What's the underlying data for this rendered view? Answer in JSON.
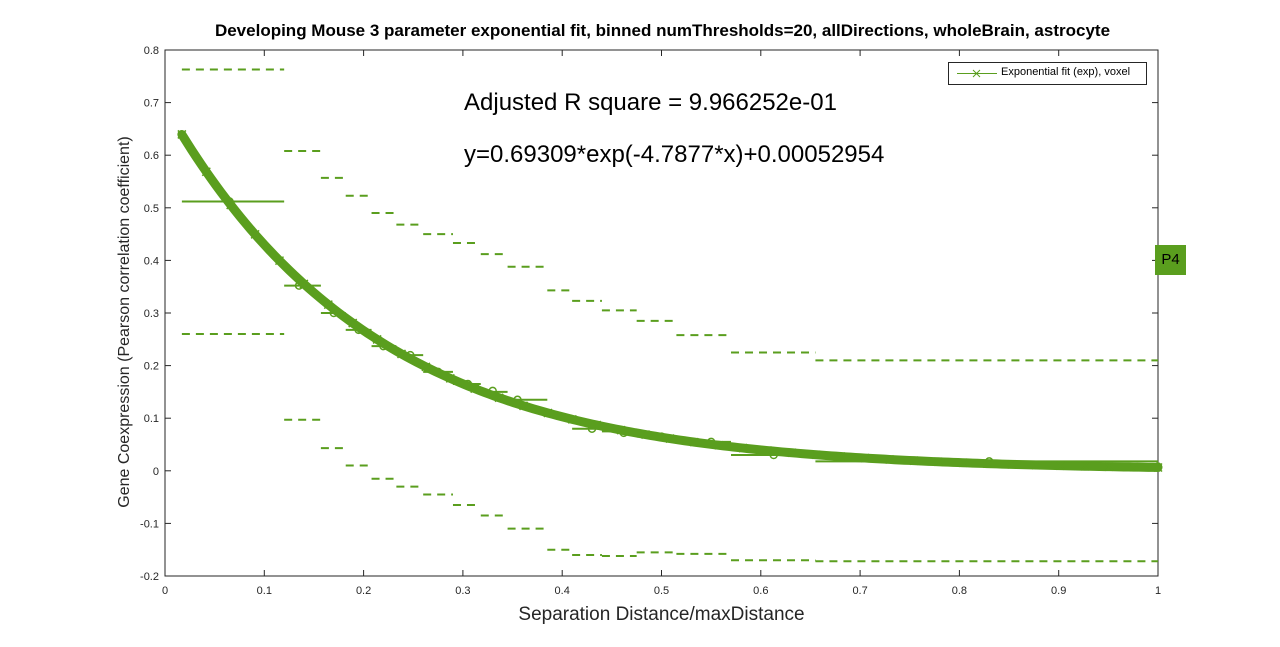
{
  "chart_data": {
    "type": "line",
    "title": "Developing Mouse 3 parameter exponential fit, binned numThresholds=20, allDirections, wholeBrain, astrocyte",
    "xlabel": "Separation Distance/maxDistance",
    "ylabel": "Gene Coexpression (Pearson correlation coefficient)",
    "xlim": [
      0,
      1
    ],
    "ylim": [
      -0.2,
      0.8
    ],
    "xticks": [
      0,
      0.1,
      0.2,
      0.3,
      0.4,
      0.5,
      0.6,
      0.7,
      0.8,
      0.9,
      1
    ],
    "xtick_labels": [
      "0",
      "0.1",
      "0.2",
      "0.3",
      "0.4",
      "0.5",
      "0.6",
      "0.7",
      "0.8",
      "0.9",
      "1"
    ],
    "yticks": [
      -0.2,
      -0.1,
      0,
      0.1,
      0.2,
      0.3,
      0.4,
      0.5,
      0.6,
      0.7,
      0.8
    ],
    "ytick_labels": [
      "-0.2",
      "-0.1",
      "0",
      "0.1",
      "0.2",
      "0.3",
      "0.4",
      "0.5",
      "0.6",
      "0.7",
      "0.8"
    ],
    "grid": false,
    "legend_position": "top-right",
    "color": "#5a9e1e",
    "fit": {
      "name": "Exponential fit (exp), voxel",
      "a": 0.69309,
      "b": -4.7877,
      "c": 0.00052954,
      "x_range": [
        0.017,
        1.0
      ]
    },
    "bins": [
      {
        "x0": 0.017,
        "x1": 0.12,
        "mean": 0.512,
        "upper": 0.763,
        "lower": 0.26
      },
      {
        "x0": 0.12,
        "x1": 0.157,
        "mean": 0.352,
        "upper": 0.608,
        "lower": 0.097
      },
      {
        "x0": 0.157,
        "x1": 0.182,
        "mean": 0.3,
        "upper": 0.557,
        "lower": 0.043
      },
      {
        "x0": 0.182,
        "x1": 0.208,
        "mean": 0.268,
        "upper": 0.523,
        "lower": 0.01
      },
      {
        "x0": 0.208,
        "x1": 0.233,
        "mean": 0.237,
        "upper": 0.49,
        "lower": -0.015
      },
      {
        "x0": 0.233,
        "x1": 0.26,
        "mean": 0.22,
        "upper": 0.468,
        "lower": -0.03
      },
      {
        "x0": 0.26,
        "x1": 0.29,
        "mean": 0.188,
        "upper": 0.45,
        "lower": -0.045
      },
      {
        "x0": 0.29,
        "x1": 0.318,
        "mean": 0.165,
        "upper": 0.433,
        "lower": -0.065
      },
      {
        "x0": 0.318,
        "x1": 0.345,
        "mean": 0.15,
        "upper": 0.412,
        "lower": -0.085
      },
      {
        "x0": 0.345,
        "x1": 0.385,
        "mean": 0.135,
        "upper": 0.388,
        "lower": -0.11
      },
      {
        "x0": 0.385,
        "x1": 0.41,
        "mean": 0.105,
        "upper": 0.343,
        "lower": -0.15
      },
      {
        "x0": 0.41,
        "x1": 0.44,
        "mean": 0.08,
        "upper": 0.323,
        "lower": -0.16
      },
      {
        "x0": 0.44,
        "x1": 0.475,
        "mean": 0.075,
        "upper": 0.305,
        "lower": -0.162
      },
      {
        "x0": 0.475,
        "x1": 0.515,
        "mean": 0.065,
        "upper": 0.285,
        "lower": -0.155
      },
      {
        "x0": 0.515,
        "x1": 0.57,
        "mean": 0.055,
        "upper": 0.258,
        "lower": -0.158
      },
      {
        "x0": 0.57,
        "x1": 0.655,
        "mean": 0.03,
        "upper": 0.225,
        "lower": -0.17
      },
      {
        "x0": 0.655,
        "x1": 1.0,
        "mean": 0.018,
        "upper": 0.21,
        "lower": -0.172
      }
    ],
    "points": [
      {
        "x": 0.065,
        "y": 0.512
      },
      {
        "x": 0.135,
        "y": 0.352
      },
      {
        "x": 0.17,
        "y": 0.3
      },
      {
        "x": 0.195,
        "y": 0.268
      },
      {
        "x": 0.22,
        "y": 0.237
      },
      {
        "x": 0.247,
        "y": 0.22
      },
      {
        "x": 0.275,
        "y": 0.188
      },
      {
        "x": 0.305,
        "y": 0.165
      },
      {
        "x": 0.33,
        "y": 0.152
      },
      {
        "x": 0.355,
        "y": 0.135
      },
      {
        "x": 0.395,
        "y": 0.105
      },
      {
        "x": 0.43,
        "y": 0.08
      },
      {
        "x": 0.462,
        "y": 0.072
      },
      {
        "x": 0.5,
        "y": 0.065
      },
      {
        "x": 0.55,
        "y": 0.055
      },
      {
        "x": 0.613,
        "y": 0.03
      },
      {
        "x": 0.83,
        "y": 0.018
      },
      {
        "x": 1.0,
        "y": 0.008
      }
    ]
  },
  "annotations": {
    "r_square": "Adjusted R square = 9.966252e-01",
    "equation": "y=0.69309*exp(-4.7877*x)+0.00052954"
  },
  "legend": {
    "label": "Exponential fit (exp), voxel"
  },
  "badge": {
    "label": "P4",
    "color": "#5a9e1e"
  }
}
